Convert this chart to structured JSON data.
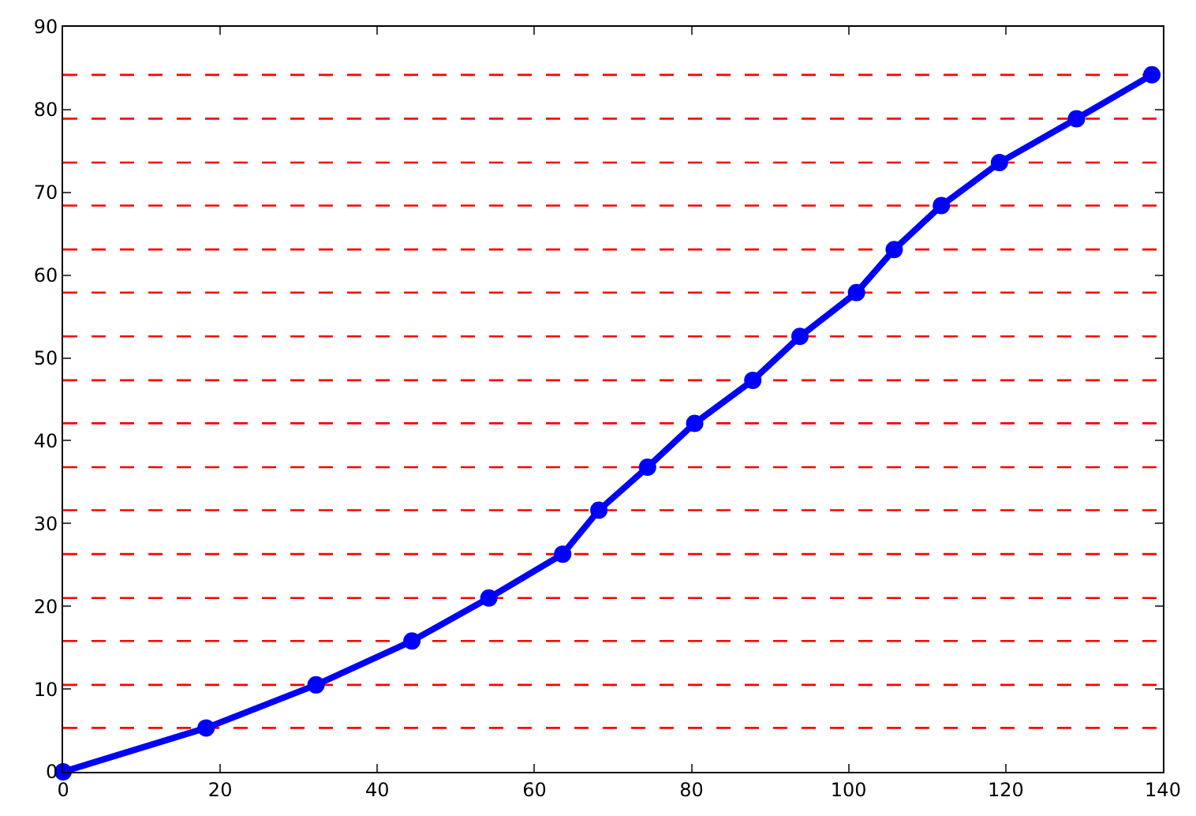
{
  "chart_data": {
    "type": "line",
    "x": [
      0,
      18.2,
      32.2,
      44.4,
      54.2,
      63.6,
      68.2,
      74.4,
      80.4,
      87.8,
      93.8,
      101,
      105.8,
      111.8,
      119.2,
      129,
      138.6
    ],
    "series": [
      {
        "color": "#0000ff",
        "values": [
          0,
          5.3,
          10.5,
          15.8,
          21.0,
          26.3,
          31.6,
          36.8,
          42.1,
          47.3,
          52.6,
          57.9,
          63.1,
          68.4,
          73.6,
          78.9,
          84.2
        ]
      }
    ],
    "xlim": [
      0,
      140
    ],
    "xticks": [
      0,
      20,
      40,
      60,
      80,
      100,
      120,
      140
    ],
    "ylim": [
      0,
      90
    ],
    "yticks": [
      0,
      10,
      20,
      30,
      40,
      50,
      60,
      70,
      80,
      90
    ],
    "grid": false,
    "marker": "circle",
    "line_style": "solid",
    "ref_lines": [
      {
        "axis": "y",
        "value": 5.3,
        "color": "#ff0000",
        "line_style": "dashed"
      },
      {
        "axis": "y",
        "value": 10.5,
        "color": "#ff0000",
        "line_style": "dashed"
      },
      {
        "axis": "y",
        "value": 15.8,
        "color": "#ff0000",
        "line_style": "dashed"
      },
      {
        "axis": "y",
        "value": 21.0,
        "color": "#ff0000",
        "line_style": "dashed"
      },
      {
        "axis": "y",
        "value": 26.3,
        "color": "#ff0000",
        "line_style": "dashed"
      },
      {
        "axis": "y",
        "value": 31.6,
        "color": "#ff0000",
        "line_style": "dashed"
      },
      {
        "axis": "y",
        "value": 36.8,
        "color": "#ff0000",
        "line_style": "dashed"
      },
      {
        "axis": "y",
        "value": 42.1,
        "color": "#ff0000",
        "line_style": "dashed"
      },
      {
        "axis": "y",
        "value": 47.3,
        "color": "#ff0000",
        "line_style": "dashed"
      },
      {
        "axis": "y",
        "value": 52.6,
        "color": "#ff0000",
        "line_style": "dashed"
      },
      {
        "axis": "y",
        "value": 57.9,
        "color": "#ff0000",
        "line_style": "dashed"
      },
      {
        "axis": "y",
        "value": 63.1,
        "color": "#ff0000",
        "line_style": "dashed"
      },
      {
        "axis": "y",
        "value": 68.4,
        "color": "#ff0000",
        "line_style": "dashed"
      },
      {
        "axis": "y",
        "value": 73.6,
        "color": "#ff0000",
        "line_style": "dashed"
      },
      {
        "axis": "y",
        "value": 78.9,
        "color": "#ff0000",
        "line_style": "dashed"
      },
      {
        "axis": "y",
        "value": 84.2,
        "color": "#ff0000",
        "line_style": "dashed"
      }
    ]
  }
}
